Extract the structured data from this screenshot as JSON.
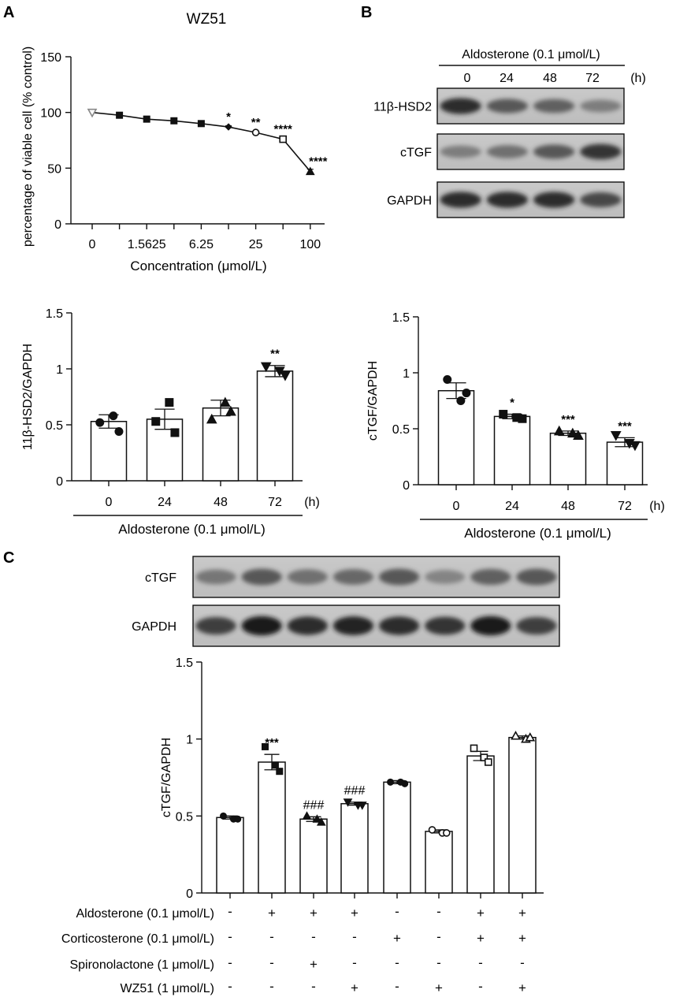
{
  "panels": {
    "a": "A",
    "b": "B",
    "c": "C"
  },
  "blots": {
    "b": {
      "header": "Aldosterone (0.1 μmol/L)",
      "lanes": [
        "0",
        "24",
        "48",
        "72"
      ],
      "unit": "(h)",
      "rows": [
        {
          "label": "11β-HSD2",
          "band_strength": [
            0.85,
            0.6,
            0.55,
            0.35
          ]
        },
        {
          "label": "cTGF",
          "band_strength": [
            0.35,
            0.45,
            0.6,
            0.8
          ]
        },
        {
          "label": "GAPDH",
          "band_strength": [
            0.85,
            0.85,
            0.85,
            0.7
          ]
        }
      ]
    },
    "c": {
      "rows": [
        {
          "label": "cTGF",
          "band_strength": [
            0.4,
            0.6,
            0.45,
            0.5,
            0.6,
            0.3,
            0.55,
            0.6
          ]
        },
        {
          "label": "GAPDH",
          "band_strength": [
            0.75,
            0.95,
            0.85,
            0.9,
            0.85,
            0.8,
            0.95,
            0.75
          ]
        }
      ]
    }
  },
  "chart_data": [
    {
      "id": "A",
      "type": "line",
      "title": "WZ51",
      "xlabel": "Concentration (μmol/L)",
      "ylabel": "percentage of viable cell (% control)",
      "ylim": [
        0,
        150
      ],
      "yticks": [
        0,
        50,
        100,
        150
      ],
      "xtick_labels": [
        "0",
        "1.5625",
        "6.25",
        "25",
        "100"
      ],
      "x_positions": [
        0,
        1,
        2,
        3,
        4,
        5,
        6,
        7,
        8
      ],
      "values": [
        100,
        97.5,
        94,
        92.5,
        90,
        87,
        82,
        76,
        47
      ],
      "errors": [
        0,
        1.5,
        1.5,
        1.5,
        1.5,
        1,
        1,
        1.5,
        2
      ],
      "markers": [
        "triangle-down-open",
        "square",
        "square",
        "square",
        "square",
        "diamond",
        "circle-open",
        "square-open",
        "triangle-up"
      ],
      "annotations": [
        "",
        "",
        "",
        "",
        "",
        "*",
        "**",
        "****",
        "****"
      ],
      "grid": false
    },
    {
      "id": "B1",
      "type": "bar",
      "ylabel": "11β-HSD2/GAPDH",
      "ylim": [
        0,
        1.5
      ],
      "yticks": [
        "0",
        "0.5",
        "1",
        "1.5"
      ],
      "categories": [
        "0",
        "24",
        "48",
        "72"
      ],
      "unit": "(h)",
      "group_label": "Aldosterone (0.1 μmol/L)",
      "values": [
        0.53,
        0.55,
        0.65,
        0.98
      ],
      "errors": [
        0.06,
        0.09,
        0.07,
        0.05
      ],
      "points": [
        [
          0.52,
          0.58,
          0.44
        ],
        [
          0.53,
          0.7,
          0.43
        ],
        [
          0.55,
          0.7,
          0.62
        ],
        [
          1.02,
          0.98,
          0.94
        ]
      ],
      "markers": [
        "circle",
        "square",
        "triangle-up",
        "triangle-down"
      ],
      "annotations": [
        "",
        "",
        "",
        "**"
      ],
      "grid": false
    },
    {
      "id": "B2",
      "type": "bar",
      "ylabel": "cTGF/GAPDH",
      "ylim": [
        0,
        1.5
      ],
      "yticks": [
        "0",
        "0.5",
        "1",
        "1.5"
      ],
      "categories": [
        "0",
        "24",
        "48",
        "72"
      ],
      "unit": "(h)",
      "group_label": "Aldosterone (0.1 μmol/L)",
      "values": [
        0.84,
        0.61,
        0.46,
        0.38
      ],
      "errors": [
        0.07,
        0.02,
        0.02,
        0.04
      ],
      "points": [
        [
          0.94,
          0.75,
          0.82
        ],
        [
          0.63,
          0.6,
          0.59
        ],
        [
          0.48,
          0.46,
          0.44
        ],
        [
          0.44,
          0.37,
          0.35
        ]
      ],
      "markers": [
        "circle",
        "square",
        "triangle-up",
        "triangle-down"
      ],
      "annotations": [
        "",
        "*",
        "***",
        "***"
      ],
      "grid": false
    },
    {
      "id": "C",
      "type": "bar",
      "ylabel": "cTGF/GAPDH",
      "ylim": [
        0,
        1.5
      ],
      "yticks": [
        "0",
        "0.5",
        "1",
        "1.5"
      ],
      "values": [
        0.49,
        0.85,
        0.48,
        0.58,
        0.72,
        0.4,
        0.89,
        1.01
      ],
      "errors": [
        0.01,
        0.05,
        0.015,
        0.01,
        0.01,
        0.01,
        0.03,
        0.01
      ],
      "points": [
        [
          0.5,
          0.48,
          0.48
        ],
        [
          0.95,
          0.83,
          0.79
        ],
        [
          0.5,
          0.48,
          0.46
        ],
        [
          0.59,
          0.57,
          0.57
        ],
        [
          0.72,
          0.72,
          0.71
        ],
        [
          0.41,
          0.39,
          0.39
        ],
        [
          0.94,
          0.88,
          0.85
        ],
        [
          1.02,
          1.0,
          1.01
        ]
      ],
      "markers": [
        "circle",
        "square",
        "triangle-up",
        "triangle-down",
        "circle",
        "circle-open",
        "square-open",
        "triangle-up-open"
      ],
      "annotations": [
        "",
        "***",
        "###",
        "###",
        "",
        "",
        "",
        ""
      ],
      "treatments": [
        {
          "label": "Aldosterone (0.1 μmol/L)",
          "signs": [
            "-",
            "+",
            "+",
            "+",
            "-",
            "-",
            "+",
            "+"
          ]
        },
        {
          "label": "Corticosterone (0.1 μmol/L)",
          "signs": [
            "-",
            "-",
            "-",
            "-",
            "+",
            "-",
            "+",
            "+"
          ]
        },
        {
          "label": "Spironolactone (1 μmol/L)",
          "signs": [
            "-",
            "-",
            "+",
            "-",
            "-",
            "-",
            "-",
            "-"
          ]
        },
        {
          "label": "WZ51 (1 μmol/L)",
          "signs": [
            "-",
            "-",
            "-",
            "+",
            "-",
            "+",
            "-",
            "+"
          ]
        }
      ],
      "grid": false
    }
  ]
}
